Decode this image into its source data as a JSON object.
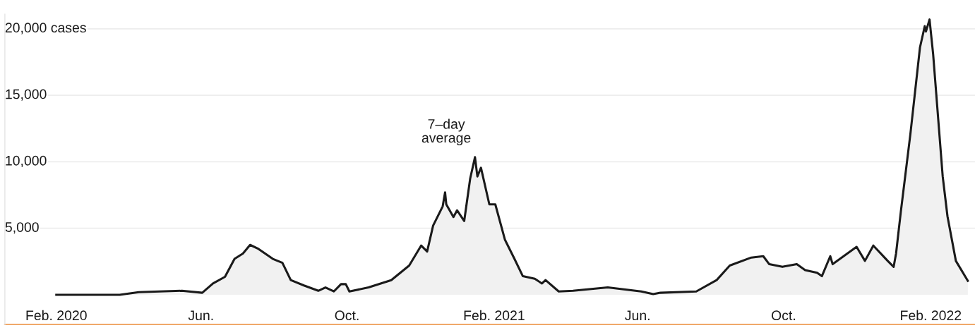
{
  "chart_data": {
    "type": "area",
    "x": [
      "2020-02-01",
      "2020-03-25",
      "2020-04-10",
      "2020-05-16",
      "2020-06-02",
      "2020-06-11",
      "2020-06-21",
      "2020-06-29",
      "2020-07-06",
      "2020-07-12",
      "2020-07-19",
      "2020-07-31",
      "2020-08-08",
      "2020-08-15",
      "2020-08-26",
      "2020-09-07",
      "2020-09-13",
      "2020-09-20",
      "2020-09-26",
      "2020-09-30",
      "2020-10-03",
      "2020-10-19",
      "2020-11-07",
      "2020-11-22",
      "2020-12-02",
      "2020-12-07",
      "2020-12-12",
      "2020-12-20",
      "2020-12-22",
      "2020-12-23",
      "2020-12-29",
      "2021-01-01",
      "2021-01-07",
      "2021-01-12",
      "2021-01-16",
      "2021-01-18",
      "2021-01-21",
      "2021-01-28",
      "2021-02-02",
      "2021-02-10",
      "2021-02-18",
      "2021-02-25",
      "2021-03-07",
      "2021-03-13",
      "2021-03-16",
      "2021-03-27",
      "2021-04-08",
      "2021-05-07",
      "2021-06-04",
      "2021-06-14",
      "2021-06-20",
      "2021-07-20",
      "2021-08-06",
      "2021-08-17",
      "2021-09-04",
      "2021-09-14",
      "2021-09-19",
      "2021-09-30",
      "2021-10-12",
      "2021-10-19",
      "2021-10-29",
      "2021-11-02",
      "2021-11-09",
      "2021-11-11",
      "2021-12-01",
      "2021-12-08",
      "2021-12-15",
      "2021-12-27",
      "2022-01-01",
      "2022-01-03",
      "2022-01-07",
      "2022-01-15",
      "2022-01-23",
      "2022-01-27",
      "2022-01-28",
      "2022-01-31",
      "2022-02-03",
      "2022-02-11",
      "2022-02-15",
      "2022-02-22",
      "2022-03-04"
    ],
    "series": [
      {
        "color": "#1a1a1a",
        "values": [
          0,
          0,
          200,
          300,
          150,
          850,
          1350,
          2700,
          3100,
          3750,
          3450,
          2700,
          2400,
          1100,
          700,
          300,
          550,
          250,
          800,
          800,
          250,
          550,
          1100,
          2200,
          3700,
          3250,
          5200,
          6650,
          7700,
          6800,
          5850,
          6350,
          5550,
          8750,
          10350,
          8900,
          9550,
          6800,
          6800,
          4150,
          2700,
          1400,
          1200,
          850,
          1100,
          250,
          300,
          550,
          250,
          50,
          150,
          250,
          1100,
          2200,
          2800,
          2900,
          2300,
          2100,
          2300,
          1850,
          1650,
          1400,
          2900,
          2300,
          3600,
          2550,
          3700,
          2550,
          2100,
          3100,
          6250,
          12100,
          18600,
          20200,
          19800,
          20700,
          18100,
          8900,
          5900,
          2550,
          1050
        ]
      }
    ],
    "xlim": [
      "2019-12-20",
      "2022-03-10"
    ],
    "xticks": [
      {
        "value": "2020-02-01",
        "label": "Feb. 2020"
      },
      {
        "value": "2020-06-01",
        "label": "Jun."
      },
      {
        "value": "2020-10-01",
        "label": "Oct."
      },
      {
        "value": "2021-02-01",
        "label": "Feb. 2021"
      },
      {
        "value": "2021-06-01",
        "label": "Jun."
      },
      {
        "value": "2021-10-01",
        "label": "Oct."
      },
      {
        "value": "2022-02-01",
        "label": "Feb. 2022"
      }
    ],
    "ylim": [
      -2230,
      21100
    ],
    "yticks": [
      {
        "value": 5000,
        "label": "5,000"
      },
      {
        "value": 10000,
        "label": "10,000"
      },
      {
        "value": 15000,
        "label": "15,000"
      },
      {
        "value": 20000,
        "label": "20,000 cases"
      }
    ],
    "grid": "y",
    "annotations": [
      "7–day\naverage"
    ]
  }
}
